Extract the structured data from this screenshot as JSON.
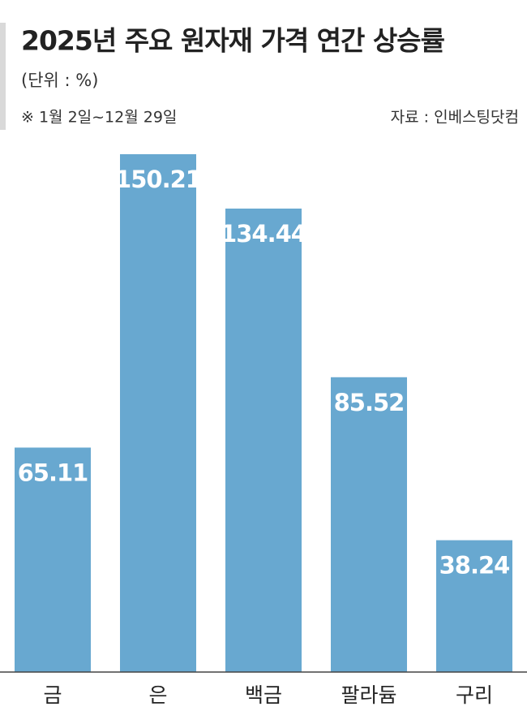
{
  "chart_data": {
    "type": "bar",
    "title": "2025년 주요 원자재 가격 연간 상승률",
    "subtitle": "(단위 : %)",
    "note": "※ 1월 2일~12월 29일",
    "source": "자료 : 인베스팅닷컴",
    "categories": [
      "금",
      "은",
      "백금",
      "팔라듐",
      "구리"
    ],
    "values": [
      65.11,
      150.21,
      134.44,
      85.52,
      38.24
    ],
    "value_labels": [
      "65.11",
      "150.21",
      "134.44",
      "85.52",
      "38.24"
    ],
    "color": "#68a8d0"
  }
}
